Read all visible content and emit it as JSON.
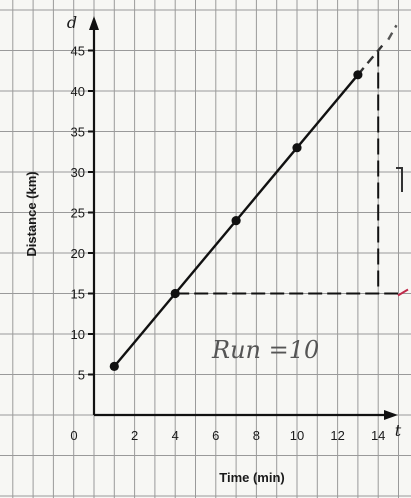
{
  "chart_data": {
    "type": "line",
    "title": "",
    "xlabel": "Time (min)",
    "ylabel": "Distance (km)",
    "x_var": "t",
    "y_var": "d",
    "origin_label": "0",
    "xlim": [
      0,
      15
    ],
    "ylim": [
      0,
      50
    ],
    "x_ticks": [
      2,
      4,
      6,
      8,
      10,
      12,
      14
    ],
    "y_ticks": [
      5,
      10,
      15,
      20,
      25,
      30,
      35,
      40,
      45
    ],
    "grid": true,
    "series": [
      {
        "x": [
          1,
          4,
          7,
          10,
          13
        ],
        "y": [
          6,
          15,
          24,
          33,
          42
        ],
        "extension": {
          "x": [
            13,
            14.2
          ],
          "y": [
            42,
            45.6
          ]
        },
        "marker": "circle"
      }
    ],
    "annotations": {
      "run_text": "Run =10",
      "horizontal_guide_y": 15,
      "vertical_guide_x": 14,
      "vertical_guide_from_y": 15,
      "vertical_guide_to_y": 45,
      "run_from_x": 4,
      "run_to_x": 14
    },
    "colors": {
      "line": "#111111",
      "grid": "#9a9a9a",
      "guide": "#111111",
      "mark_red": "#c02a4a"
    }
  }
}
